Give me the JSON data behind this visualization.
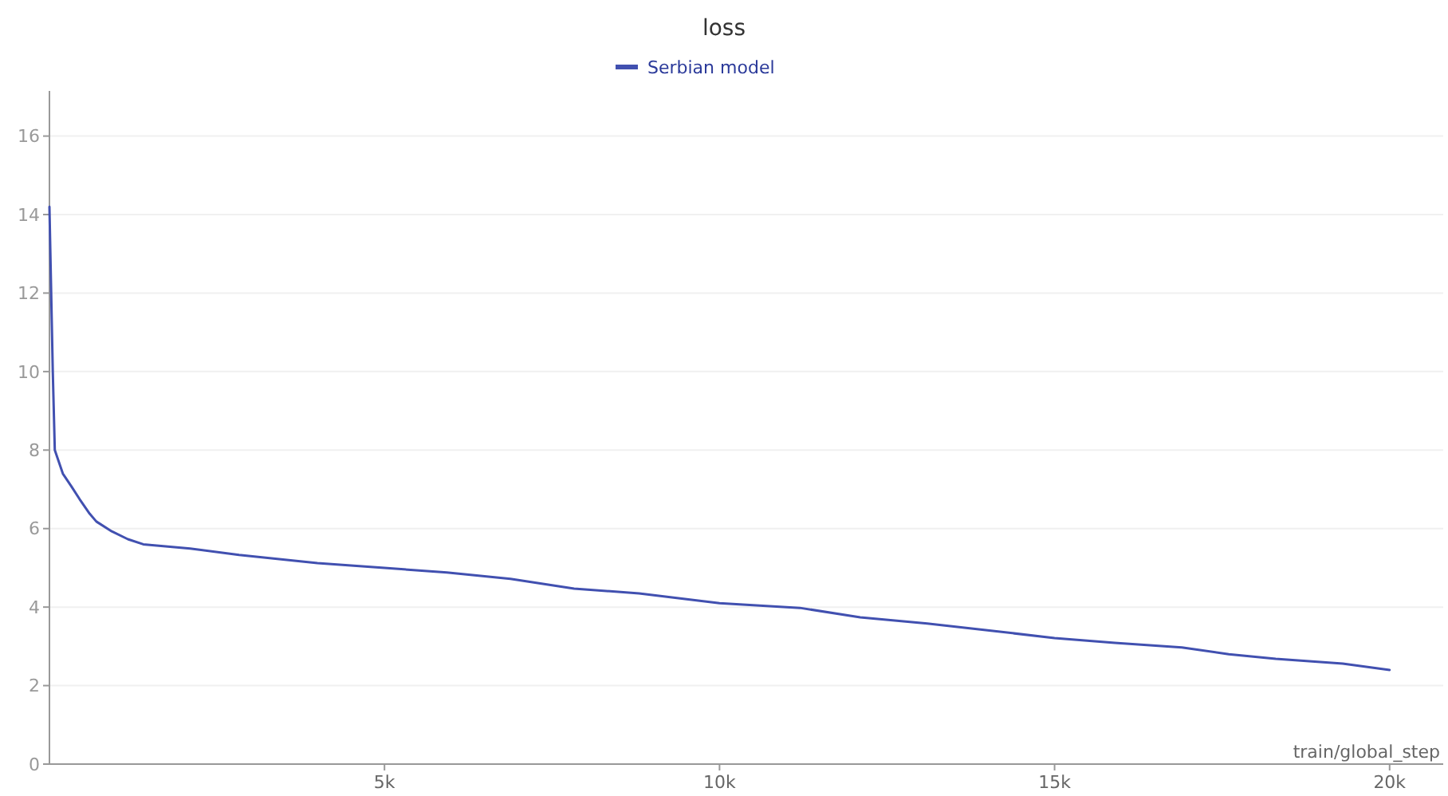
{
  "chart_data": {
    "type": "line",
    "title": "loss",
    "xlabel": "train/global_step",
    "x": [
      0,
      50,
      80,
      200,
      330,
      450,
      600,
      700,
      930,
      1170,
      1400,
      2100,
      2830,
      4000,
      5000,
      5930,
      6880,
      7830,
      8800,
      10000,
      11200,
      12100,
      13100,
      14000,
      15000,
      15900,
      16900,
      17600,
      18300,
      19300,
      20000
    ],
    "series": [
      {
        "name": "Serbian model",
        "color": "#4150b0",
        "values": [
          14.2,
          10,
          8.0,
          7.4,
          7.07,
          6.75,
          6.38,
          6.18,
          5.93,
          5.73,
          5.6,
          5.49,
          5.33,
          5.12,
          5.0,
          4.88,
          4.72,
          4.47,
          4.35,
          4.1,
          3.98,
          3.74,
          3.58,
          3.41,
          3.21,
          3.09,
          2.97,
          2.8,
          2.68,
          2.56,
          2.4
        ]
      }
    ],
    "xlim": [
      0,
      20800
    ],
    "xticks": [
      {
        "value": 5000,
        "label": "5k"
      },
      {
        "value": 10000,
        "label": "10k"
      },
      {
        "value": 15000,
        "label": "15k"
      },
      {
        "value": 20000,
        "label": "20k"
      }
    ],
    "ylim": [
      0,
      17.15
    ],
    "yticks": [
      0,
      2,
      4,
      6,
      8,
      10,
      12,
      14,
      16
    ],
    "grid": "y",
    "legend": "top",
    "line_style": "solid"
  }
}
